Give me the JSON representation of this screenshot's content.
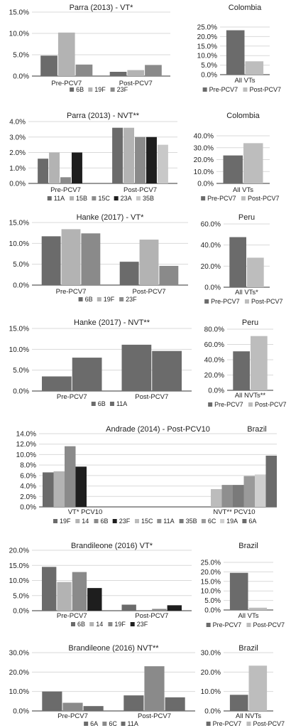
{
  "chart_data": [
    {
      "type": "bar",
      "title": "Parra (2013) - VT*",
      "categories": [
        "Pre-PCV7",
        "Post-PCV7"
      ],
      "series": [
        {
          "name": "6B",
          "values": [
            4.8,
            1.0
          ]
        },
        {
          "name": "19F",
          "values": [
            10.2,
            1.4
          ]
        },
        {
          "name": "23F",
          "values": [
            2.7,
            2.6
          ]
        }
      ],
      "yticks": [
        "0.0%",
        "5.0%",
        "10.0%",
        "15.0%"
      ],
      "ylim": [
        0,
        15
      ],
      "legend": "bottom",
      "grid": true
    },
    {
      "type": "bar",
      "title": "Colombia",
      "categories": [
        "All VTs"
      ],
      "series": [
        {
          "name": "Pre-PCV7",
          "values": [
            23.3
          ]
        },
        {
          "name": "Post-PCV7",
          "values": [
            7.0
          ]
        }
      ],
      "yticks": [
        "0.0%",
        "5.0%",
        "10.0%",
        "15.0%",
        "20.0%",
        "25.0%"
      ],
      "ylim": [
        0,
        25
      ],
      "legend": "bottom",
      "grid": true
    },
    {
      "type": "bar",
      "title": "Parra (2013) - NVT**",
      "categories": [
        "Pre-PCV7",
        "Post-PCV7"
      ],
      "series": [
        {
          "name": "11A",
          "values": [
            1.6,
            3.6
          ]
        },
        {
          "name": "15B",
          "values": [
            2.0,
            3.6
          ]
        },
        {
          "name": "15C",
          "values": [
            0.4,
            3.0
          ]
        },
        {
          "name": "23A",
          "values": [
            2.0,
            3.0
          ]
        },
        {
          "name": "35B",
          "values": [
            0,
            2.5
          ]
        }
      ],
      "yticks": [
        "0.0%",
        "1.0%",
        "2.0%",
        "3.0%",
        "4.0%"
      ],
      "ylim": [
        0,
        4
      ],
      "legend": "bottom",
      "grid": true
    },
    {
      "type": "bar",
      "title": "Colombia",
      "categories": [
        "All VTs"
      ],
      "series": [
        {
          "name": "Pre-PCV7",
          "values": [
            23.5
          ]
        },
        {
          "name": "Post-PCV7",
          "values": [
            33.8
          ]
        }
      ],
      "yticks": [
        "0.0%",
        "10.0%",
        "20.0%",
        "30.0%",
        "40.0%"
      ],
      "ylim": [
        0,
        40
      ],
      "legend": "bottom",
      "grid": true
    },
    {
      "type": "bar",
      "title": "Hanke (2017) - VT*",
      "categories": [
        "Pre-PCV7",
        "Post-PCV7"
      ],
      "series": [
        {
          "name": "6B",
          "values": [
            11.7,
            5.6
          ]
        },
        {
          "name": "19F",
          "values": [
            13.4,
            10.9
          ]
        },
        {
          "name": "23F",
          "values": [
            12.4,
            4.6
          ]
        }
      ],
      "yticks": [
        "0.0%",
        "5.0%",
        "10.0%",
        "15.0%"
      ],
      "ylim": [
        0,
        15
      ],
      "legend": "bottom",
      "grid": true
    },
    {
      "type": "bar",
      "title": "Peru",
      "categories": [
        "All VTs*"
      ],
      "series": [
        {
          "name": "Pre-PCV7",
          "values": [
            47.5
          ]
        },
        {
          "name": "Post-PCV7",
          "values": [
            28.0
          ]
        }
      ],
      "yticks": [
        "0.0%",
        "20.0%",
        "40.0%",
        "60.0%"
      ],
      "ylim": [
        0,
        60
      ],
      "legend": "bottom",
      "grid": true
    },
    {
      "type": "bar",
      "title": "Hanke (2017) - NVT**",
      "categories": [
        "Pre-PCV7",
        "Post-PCV7"
      ],
      "series": [
        {
          "name": "6B",
          "values": [
            3.5,
            11.1
          ]
        },
        {
          "name": "11A",
          "values": [
            8.0,
            9.6
          ]
        }
      ],
      "yticks": [
        "0.0%",
        "5.0%",
        "10.0%",
        "15.0%"
      ],
      "ylim": [
        0,
        15
      ],
      "legend": "bottom",
      "grid": true
    },
    {
      "type": "bar",
      "title": "Peru",
      "categories": [
        "All NVTs**"
      ],
      "series": [
        {
          "name": "Pre-PCV7",
          "values": [
            51.0
          ]
        },
        {
          "name": "Post-PCV7",
          "values": [
            71.0
          ]
        }
      ],
      "yticks": [
        "0.0%",
        "20.0%",
        "40.0%",
        "60.0%",
        "80.0%"
      ],
      "ylim": [
        0,
        80
      ],
      "legend": "bottom",
      "grid": true
    },
    {
      "type": "bar",
      "title": "Andrade (2014) - Post-PCV10",
      "categories": [
        "VT* PCV10",
        "NVT** PCV10"
      ],
      "series": [
        {
          "name": "19F",
          "values": [
            6.6,
            0
          ]
        },
        {
          "name": "14",
          "values": [
            6.8,
            0
          ]
        },
        {
          "name": "6B",
          "values": [
            11.6,
            0
          ]
        },
        {
          "name": "23F",
          "values": [
            7.7,
            0
          ]
        },
        {
          "name": "15C",
          "values": [
            0,
            3.4
          ]
        },
        {
          "name": "11A",
          "values": [
            0,
            4.2
          ]
        },
        {
          "name": "35B",
          "values": [
            0,
            4.2
          ]
        },
        {
          "name": "6C",
          "values": [
            0,
            5.9
          ]
        },
        {
          "name": "19A",
          "values": [
            0,
            6.2
          ]
        },
        {
          "name": "6A",
          "values": [
            0,
            9.8
          ]
        }
      ],
      "yticks": [
        "0.0%",
        "2.0%",
        "4.0%",
        "6.0%",
        "8.0%",
        "10.0%",
        "12.0%",
        "14.0%"
      ],
      "ylim": [
        0,
        14
      ],
      "legend": "bottom",
      "grid": true
    },
    {
      "type": "bar",
      "title": "Brazil",
      "categories": [],
      "series": [],
      "note": "heading only, no plotted values"
    },
    {
      "type": "bar",
      "title": "Brandileone (2016) VT*",
      "categories": [
        "Pre-PCV7",
        "Post-PCV7"
      ],
      "series": [
        {
          "name": "6B",
          "values": [
            14.5,
            2.0
          ]
        },
        {
          "name": "14",
          "values": [
            9.5,
            0
          ]
        },
        {
          "name": "19F",
          "values": [
            12.8,
            0.6
          ]
        },
        {
          "name": "23F",
          "values": [
            7.5,
            1.8
          ]
        }
      ],
      "yticks": [
        "0.0%",
        "5.0%",
        "10.0%",
        "15.0%",
        "20.0%"
      ],
      "ylim": [
        0,
        20
      ],
      "legend": "bottom",
      "grid": true
    },
    {
      "type": "bar",
      "title": "Brazil",
      "categories": [
        "All VTs"
      ],
      "series": [
        {
          "name": "Pre-PCV7",
          "values": [
            19.5
          ]
        },
        {
          "name": "Post-PCV7",
          "values": [
            1.2
          ]
        }
      ],
      "yticks": [
        "0.0%",
        "5.0%",
        "10.0%",
        "15.0%",
        "20.0%",
        "25.0%"
      ],
      "ylim": [
        0,
        25
      ],
      "legend": "bottom",
      "grid": true
    },
    {
      "type": "bar",
      "title": "Brandileone (2016) NVT**",
      "categories": [
        "Pre-PCV7",
        "Post-PCV7"
      ],
      "series": [
        {
          "name": "6A",
          "values": [
            10.0,
            8.0
          ]
        },
        {
          "name": "6C",
          "values": [
            4.2,
            23.0
          ]
        },
        {
          "name": "11A",
          "values": [
            2.5,
            7.0
          ]
        }
      ],
      "yticks": [
        "0.0%",
        "10.0%",
        "20.0%",
        "30.0%"
      ],
      "ylim": [
        0,
        30
      ],
      "legend": "bottom",
      "grid": true
    },
    {
      "type": "bar",
      "title": "Brazil",
      "categories": [
        "All NVTs"
      ],
      "series": [
        {
          "name": "Pre-PCV7",
          "values": [
            8.3
          ]
        },
        {
          "name": "Post-PCV7",
          "values": [
            23.3
          ]
        }
      ],
      "yticks": [
        "0.0%",
        "10.0%",
        "20.0%",
        "30.0%"
      ],
      "ylim": [
        0,
        30
      ],
      "legend": "bottom",
      "grid": true
    }
  ],
  "colors": {
    "6B": "#6b6b6b",
    "19F": "#b3b3b3",
    "23F": "#8a8a8a",
    "11A": "#6b6b6b",
    "15B": "#b3b3b3",
    "15C": "#8a8a8a",
    "23A": "#1e1e1e",
    "35B": "#c8c8c8",
    "14": "#b3b3b3",
    "6C": "#8a8a8a",
    "19A": "#cfcfcf",
    "6A": "#6b6b6b",
    "Pre-PCV7": "#6b6b6b",
    "Post-PCV7": "#bdbdbd",
    "grid": "#d9d9d9",
    "axis": "#333333"
  },
  "andrade_colors": [
    "#6b6b6b",
    "#b3b3b3",
    "#8a8a8a",
    "#1e1e1e",
    "#bcbcbc",
    "#8f8f8f",
    "#7a7a7a",
    "#9a9a9a",
    "#cfcfcf",
    "#6b6b6b"
  ],
  "brandileone_vt_colors": [
    "#6b6b6b",
    "#b3b3b3",
    "#8a8a8a",
    "#1e1e1e"
  ]
}
